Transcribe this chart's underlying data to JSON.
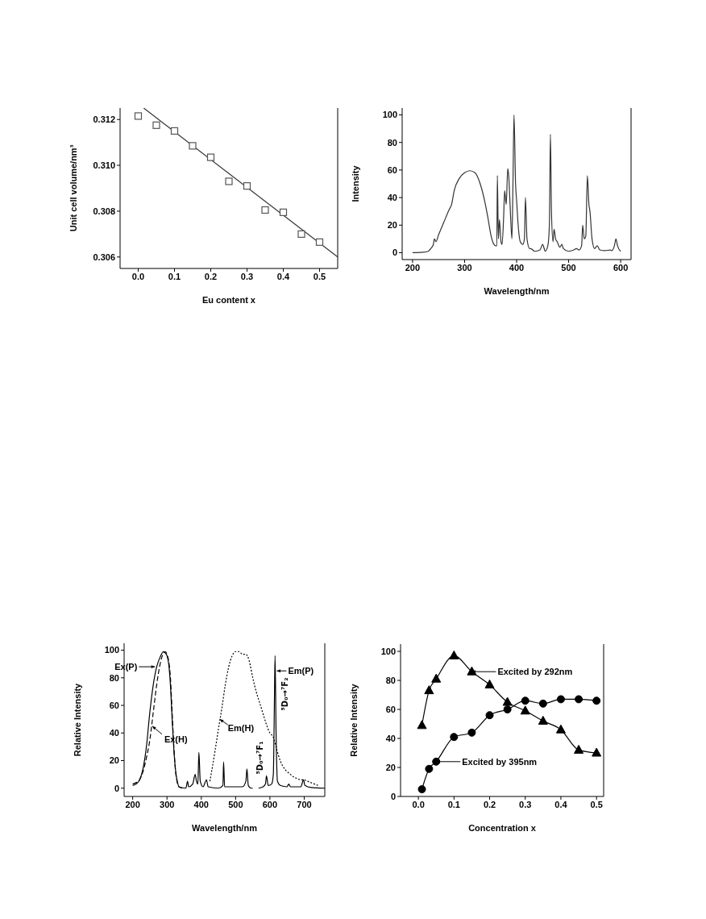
{
  "chart_data": [
    {
      "type": "scatter",
      "xlabel": "Eu content x",
      "ylabel": "Unit cell volume/nm³",
      "xlim": [
        -0.05,
        0.55
      ],
      "ylim": [
        0.3055,
        0.3125
      ],
      "xticks": [
        {
          "value": 0,
          "label": "0.0"
        },
        0.1,
        0.2,
        0.3,
        0.4,
        0.5
      ],
      "yticks": [
        0.306,
        0.308,
        {
          "value": 0.31,
          "label": "0.310"
        },
        0.312
      ],
      "series": [
        {
          "marker": "square",
          "color": "#555555",
          "x": [
            0,
            0.05,
            0.1,
            0.15,
            0.2,
            0.25,
            0.3,
            0.35,
            0.4,
            0.45,
            0.5
          ],
          "values": [
            0.31215,
            0.31175,
            0.3115,
            0.31085,
            0.31035,
            0.3093,
            0.3091,
            0.30805,
            0.30795,
            0.307,
            0.30665
          ]
        },
        {
          "type": "line",
          "color": "#333333",
          "x": [
            0.015,
            0.55
          ],
          "values": [
            0.3125,
            0.306
          ]
        }
      ]
    },
    {
      "type": "line",
      "xlabel": "Wavelength/nm",
      "ylabel": "Intensity",
      "xlim": [
        180,
        620
      ],
      "ylim": [
        -5,
        105
      ],
      "xticks": [
        200,
        300,
        400,
        500,
        600
      ],
      "yticks": [
        0,
        20,
        40,
        60,
        80,
        100
      ],
      "color": "#333333",
      "x": [
        200,
        220,
        230,
        235,
        240,
        242,
        245,
        250,
        260,
        270,
        275,
        280,
        290,
        300,
        310,
        320,
        330,
        340,
        345,
        350,
        355,
        360,
        362,
        363,
        365,
        367,
        370,
        372,
        375,
        377,
        380,
        383,
        385,
        388,
        391,
        393,
        395,
        398,
        400,
        403,
        407,
        412,
        415,
        417,
        420,
        425,
        427,
        435,
        445,
        450,
        453,
        455,
        460,
        463,
        465,
        467,
        470,
        472,
        475,
        478,
        483,
        487,
        490,
        500,
        510,
        515,
        520,
        525,
        527,
        530,
        533,
        536,
        539,
        541,
        545,
        550,
        555,
        560,
        570,
        580,
        583,
        588,
        591,
        594,
        600
      ],
      "values": [
        0,
        0.3,
        1,
        3,
        6,
        10,
        8,
        13,
        22,
        31,
        35,
        45,
        54,
        58,
        59.5,
        58,
        50,
        35,
        25,
        14,
        7,
        5,
        5,
        56,
        10,
        24,
        8,
        6,
        25,
        45,
        35,
        61,
        55,
        30,
        10,
        50,
        100,
        50,
        38,
        20,
        8,
        6,
        10,
        40,
        10,
        3,
        3,
        1,
        2,
        6,
        3,
        1,
        5,
        20,
        86,
        30,
        8,
        17,
        10,
        8,
        4,
        6,
        3,
        1,
        2,
        3,
        2,
        5,
        20,
        10,
        12,
        56,
        35,
        30,
        10,
        3,
        5,
        2,
        1.5,
        2,
        1.5,
        5,
        10,
        5,
        1
      ]
    },
    {
      "type": "line",
      "xlabel": "Wavelength/nm",
      "ylabel": "Relative Intensity",
      "xlim": [
        175,
        760
      ],
      "ylim": [
        -6,
        105
      ],
      "xticks": [
        200,
        300,
        400,
        500,
        600,
        700
      ],
      "yticks": [
        0,
        20,
        40,
        60,
        80,
        100
      ],
      "series": [
        {
          "color": "#000000",
          "line_style": "solid",
          "x": [
            200,
            210,
            220,
            230,
            240,
            250,
            260,
            270,
            280,
            290,
            295,
            300,
            305,
            310,
            315,
            320,
            325,
            330,
            335,
            355,
            360,
            363,
            375,
            382,
            386,
            390,
            393,
            397,
            405,
            415,
            420,
            450,
            463,
            465,
            468,
            520,
            530,
            533,
            537,
            545,
            550
          ],
          "values": [
            2,
            3,
            6,
            14,
            30,
            55,
            75,
            88,
            95,
            99,
            98,
            96,
            90,
            75,
            50,
            28,
            13,
            5,
            1,
            0,
            5,
            1,
            3,
            10,
            5,
            3,
            26,
            5,
            1,
            6,
            1,
            0,
            2,
            19,
            1,
            1,
            5,
            14,
            2,
            0,
            0
          ]
        },
        {
          "color": "#000000",
          "line_style": "dashed",
          "x": [
            200,
            210,
            220,
            230,
            240,
            250,
            260,
            270,
            280,
            290,
            295,
            300,
            305,
            310,
            315,
            320,
            325,
            330,
            335,
            345
          ],
          "values": [
            3,
            4,
            6,
            12,
            22,
            35,
            55,
            75,
            90,
            98,
            99,
            97,
            92,
            80,
            55,
            30,
            12,
            4,
            1,
            0
          ]
        },
        {
          "color": "#000000",
          "line_style": "dotted",
          "x": [
            425,
            430,
            440,
            450,
            460,
            470,
            480,
            490,
            500,
            510,
            520,
            530,
            540,
            550,
            560,
            570,
            580,
            590,
            600,
            610,
            620,
            630,
            640,
            650,
            660,
            670,
            680,
            690,
            700,
            710,
            720,
            730,
            740
          ],
          "values": [
            5,
            12,
            27,
            43,
            58,
            75,
            88,
            96,
            99,
            99,
            97,
            97,
            92,
            80,
            70,
            62,
            54,
            46,
            40,
            37,
            28,
            20,
            15,
            12,
            10,
            8,
            7,
            6,
            6,
            5,
            4,
            3,
            2
          ]
        },
        {
          "color": "#000000",
          "line_style": "solid",
          "x": [
            567,
            580,
            587,
            590,
            595,
            605,
            610,
            613,
            615,
            618,
            622,
            630,
            650,
            655,
            660,
            690,
            698,
            702,
            720,
            760
          ],
          "values": [
            0,
            1,
            3,
            9,
            2,
            3,
            10,
            60,
            96,
            40,
            5,
            2,
            1,
            3,
            1,
            1,
            6,
            2,
            0.5,
            0
          ]
        }
      ],
      "annotations": [
        {
          "text": "Ex(P)",
          "x": 265,
          "y": 88
        },
        {
          "text": "Ex(H)",
          "x": 257,
          "y": 45
        },
        {
          "text": "Em(H)",
          "x": 454,
          "y": 50
        },
        {
          "text": "Em(P)",
          "x": 620,
          "y": 85
        },
        "⁵D₀→⁷F₁",
        "⁵D₀→⁷F₂"
      ]
    },
    {
      "type": "line",
      "xlabel": "Concentration x",
      "ylabel": "Relative Intensity",
      "xlim": [
        -0.05,
        0.52
      ],
      "ylim": [
        0,
        105
      ],
      "xticks": [
        {
          "value": 0,
          "label": "0.0"
        },
        0.1,
        0.2,
        0.3,
        0.4,
        0.5
      ],
      "yticks": [
        0,
        20,
        40,
        60,
        80,
        100
      ],
      "x": [
        0.01,
        0.03,
        0.05,
        0.1,
        0.15,
        0.2,
        0.25,
        0.3,
        0.35,
        0.4,
        0.45,
        0.5
      ],
      "series": [
        {
          "color": "#000000",
          "marker": "triangle",
          "values": [
            49,
            73,
            81,
            97,
            86,
            77,
            65,
            59,
            52,
            46,
            32,
            30
          ]
        },
        {
          "color": "#000000",
          "marker": "circle",
          "values": [
            5,
            19,
            24,
            41,
            44,
            56,
            60,
            66,
            64,
            67,
            67,
            66
          ]
        }
      ],
      "annotations": [
        {
          "text": "Excited by 292nm",
          "x": 0.15,
          "y": 86
        },
        {
          "text": "Excited by 395nm",
          "x": 0.05,
          "y": 24
        }
      ]
    }
  ]
}
